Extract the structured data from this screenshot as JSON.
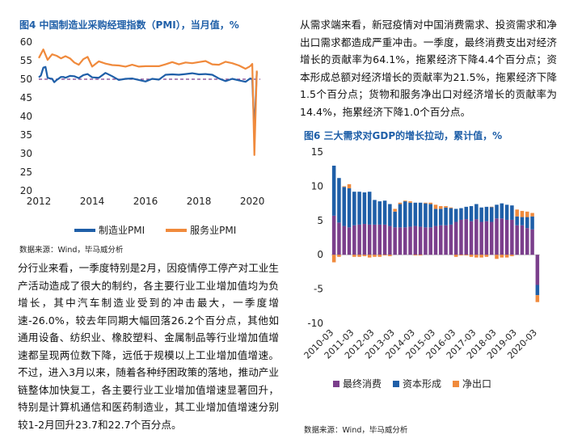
{
  "left": {
    "figure_title": "图4 中国制造业采购经理指数（PMI），当月值，%",
    "legend": [
      "制造业PMI",
      "服务业PMI"
    ],
    "source": "数据来源：Wind，毕马威分析",
    "paragraph": "分行业来看，一季度特别是2月，因疫情停工停产对工业生产活动造成了很大的制约，各主要行业工业增加值均为负增长，其中汽车制造业受到的冲击最大，一季度增速-26.0%，较去年同期大幅回落26.2个百分点，其他如通用设备、纺织业、橡胶塑料、金属制品等行业增加值增速都呈现两位数下降，远低于规模以上工业增加值增速。不过，进入3月以来，随着各种纾困政策的落地，推动产业链整体加快复工，各主要行业工业增加值增速显著回升，特别是计算机通信和医药制造业，其工业增加值增速分别较1-2月回升23.7和22.7个百分点。"
  },
  "right": {
    "paragraph": "从需求端来看，新冠疫情对中国消费需求、投资需求和净出口需求都造成严重冲击。一季度，最终消费支出对经济增长的贡献率为64.1%，拖累经济下降4.4个百分点；资本形成总额对经济增长的贡献率为21.5%，拖累经济下降1.5个百分点；货物和服务净出口对经济增长的贡献率为14.4%，拖累经济下降1.0个百分点。",
    "figure_title": "图6 三大需求对GDP的增长拉动，累计值，%",
    "legend": [
      "最终消费",
      "资本形成",
      "净出口"
    ],
    "source": "数据来源：Wind，毕马威分析"
  },
  "chart_data": [
    {
      "type": "line",
      "title": "图4 中国制造业采购经理指数（PMI），当月值，%",
      "xlabel": "",
      "ylabel": "",
      "x_ticks": [
        "2012",
        "2014",
        "2016",
        "2018",
        "2020"
      ],
      "y_ticks": [
        20,
        25,
        30,
        35,
        40,
        45,
        50,
        55,
        60
      ],
      "xlim": [
        2012,
        2020.3
      ],
      "ylim": [
        20,
        60
      ],
      "reference_line": 50,
      "grid": false,
      "legend_position": "bottom",
      "colors": {
        "制造业PMI": "#1f5fa8",
        "服务业PMI": "#f08a3c",
        "reference": "#7b3f8c"
      },
      "series": [
        {
          "name": "制造业PMI",
          "x": [
            2012.0,
            2012.08,
            2012.17,
            2012.25,
            2012.33,
            2012.42,
            2012.5,
            2012.58,
            2012.67,
            2012.75,
            2012.83,
            2012.92,
            2013.0,
            2013.17,
            2013.33,
            2013.5,
            2013.67,
            2013.83,
            2014.0,
            2014.25,
            2014.5,
            2014.75,
            2015.0,
            2015.25,
            2015.5,
            2015.75,
            2016.0,
            2016.25,
            2016.5,
            2016.75,
            2017.0,
            2017.25,
            2017.5,
            2017.75,
            2018.0,
            2018.25,
            2018.5,
            2018.75,
            2019.0,
            2019.25,
            2019.5,
            2019.75,
            2019.92,
            2020.0,
            2020.08,
            2020.17
          ],
          "values": [
            50.5,
            51.0,
            53.1,
            53.3,
            50.4,
            50.2,
            50.1,
            49.2,
            49.8,
            50.2,
            50.6,
            50.6,
            50.4,
            50.9,
            50.8,
            50.3,
            51.1,
            51.4,
            50.5,
            50.4,
            51.7,
            50.8,
            49.8,
            50.1,
            50.2,
            49.8,
            49.4,
            50.1,
            49.9,
            51.2,
            51.3,
            51.2,
            51.4,
            51.6,
            51.3,
            51.4,
            51.2,
            50.2,
            49.5,
            50.1,
            49.7,
            49.3,
            50.2,
            50.0,
            35.7,
            52.0
          ]
        },
        {
          "name": "服务业PMI",
          "x": [
            2012.0,
            2012.17,
            2012.33,
            2012.5,
            2012.67,
            2012.83,
            2013.0,
            2013.17,
            2013.33,
            2013.5,
            2013.67,
            2013.83,
            2014.0,
            2014.25,
            2014.5,
            2014.75,
            2015.0,
            2015.25,
            2015.5,
            2015.75,
            2016.0,
            2016.25,
            2016.5,
            2016.75,
            2017.0,
            2017.25,
            2017.5,
            2017.75,
            2018.0,
            2018.25,
            2018.5,
            2018.75,
            2019.0,
            2019.25,
            2019.5,
            2019.75,
            2019.92,
            2020.0,
            2020.08,
            2020.17
          ],
          "values": [
            55.7,
            58.0,
            55.2,
            56.7,
            56.3,
            55.6,
            56.2,
            55.6,
            54.5,
            53.9,
            55.4,
            56.0,
            53.4,
            54.8,
            54.2,
            53.8,
            53.7,
            53.4,
            53.9,
            53.4,
            53.5,
            53.5,
            53.5,
            54.0,
            54.6,
            54.0,
            54.5,
            54.3,
            54.6,
            54.9,
            54.0,
            53.9,
            54.7,
            54.3,
            53.7,
            52.8,
            53.5,
            54.1,
            29.6,
            52.3
          ]
        }
      ]
    },
    {
      "type": "bar",
      "stacked": true,
      "title": "图6 三大需求对GDP的增长拉动，累计值，%",
      "xlabel": "",
      "ylabel": "",
      "categories": [
        "2010-03",
        "2010-06",
        "2010-09",
        "2010-12",
        "2011-03",
        "2011-06",
        "2011-09",
        "2011-12",
        "2012-03",
        "2012-06",
        "2012-09",
        "2012-12",
        "2013-03",
        "2013-06",
        "2013-09",
        "2013-12",
        "2014-03",
        "2014-06",
        "2014-09",
        "2014-12",
        "2015-03",
        "2015-06",
        "2015-09",
        "2015-12",
        "2016-03",
        "2016-06",
        "2016-09",
        "2016-12",
        "2017-03",
        "2017-06",
        "2017-09",
        "2017-12",
        "2018-03",
        "2018-06",
        "2018-09",
        "2018-12",
        "2019-03",
        "2019-06",
        "2019-09",
        "2019-12",
        "2020-03"
      ],
      "tick_labels": [
        "2010-03",
        "2011-03",
        "2012-03",
        "2013-03",
        "2014-03",
        "2015-03",
        "2016-03",
        "2017-03",
        "2018-03",
        "2019-03",
        "2020-03"
      ],
      "ylim": [
        -10,
        15
      ],
      "y_ticks": [
        -10,
        -5,
        0,
        5,
        10,
        15
      ],
      "grid": false,
      "legend_position": "bottom",
      "colors": {
        "最终消费": "#7b3f8c",
        "资本形成": "#1f5fa8",
        "净出口": "#f08a3c"
      },
      "series": [
        {
          "name": "最终消费",
          "values": [
            5.7,
            4.7,
            4.2,
            4.0,
            4.3,
            4.4,
            4.5,
            4.4,
            4.4,
            4.4,
            4.4,
            4.2,
            4.0,
            4.0,
            4.0,
            4.1,
            4.2,
            4.1,
            4.0,
            4.0,
            4.2,
            4.3,
            4.3,
            4.4,
            4.8,
            5.1,
            5.2,
            4.9,
            5.2,
            4.8,
            4.9,
            4.8,
            5.3,
            5.3,
            5.1,
            5.1,
            4.3,
            4.3,
            3.9,
            3.7,
            -4.4
          ]
        },
        {
          "name": "资本形成",
          "values": [
            7.3,
            6.5,
            5.7,
            5.7,
            4.9,
            4.8,
            4.6,
            4.8,
            3.6,
            3.4,
            3.5,
            3.2,
            2.3,
            3.4,
            3.8,
            3.5,
            3.4,
            3.5,
            3.5,
            3.4,
            2.5,
            2.4,
            2.6,
            2.4,
            1.9,
            1.7,
            1.8,
            2.2,
            2.2,
            2.1,
            2.1,
            2.2,
            2.0,
            2.2,
            2.2,
            2.1,
            1.3,
            1.2,
            1.6,
            1.9,
            -1.5
          ]
        },
        {
          "name": "净出口",
          "values": [
            -1.1,
            -0.3,
            0.1,
            0.6,
            -0.3,
            -0.3,
            -0.2,
            -0.4,
            -0.3,
            -0.3,
            -0.1,
            -0.2,
            0.4,
            0.2,
            0.1,
            0.2,
            -0.1,
            -0.1,
            0.1,
            0.2,
            0.6,
            0.4,
            0.2,
            0.1,
            -0.3,
            -0.1,
            -0.1,
            -0.3,
            -0.4,
            -0.4,
            -0.3,
            0.0,
            -0.6,
            -0.4,
            -0.4,
            -0.2,
            1.0,
            0.9,
            0.8,
            0.5,
            -1.0
          ]
        }
      ]
    }
  ]
}
